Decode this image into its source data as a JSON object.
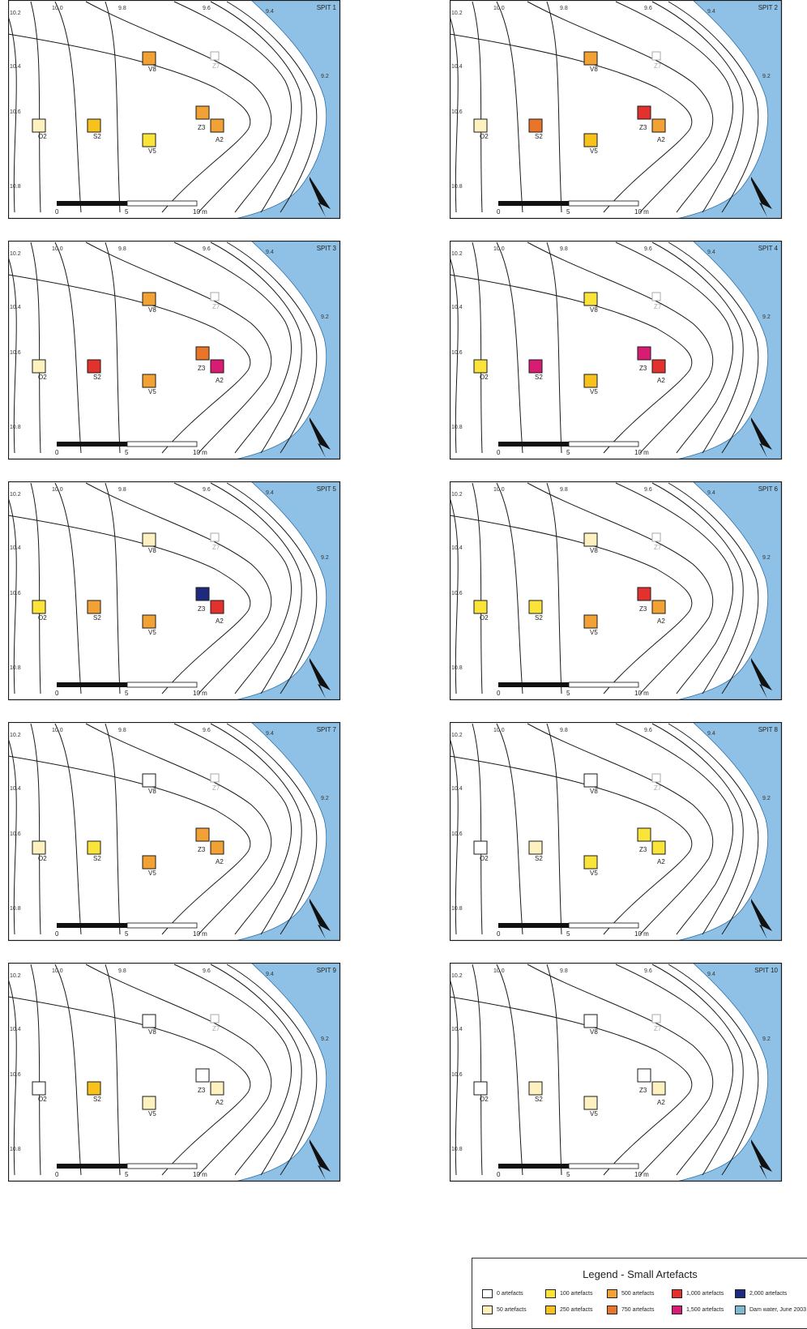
{
  "colors": {
    "0": "#ffffff",
    "50": "#fdf1c0",
    "100": "#fbe43a",
    "250": "#f7c21c",
    "500": "#f2a134",
    "750": "#e8752a",
    "1000": "#e3312e",
    "1500": "#d81c74",
    "2000": "#1d2a7e",
    "water": "#8fc1e6",
    "water_legend": "#7fb8cf"
  },
  "contour_labels": [
    "10.2",
    "10.0",
    "9.8",
    "9.6",
    "9.4",
    "10.4",
    "9.2",
    "10.6",
    "10.8"
  ],
  "scale_labels": [
    "0",
    "5",
    "10 m"
  ],
  "square_labels": [
    "V8",
    "Z7",
    "Z3",
    "A2",
    "O2",
    "S2",
    "V5"
  ],
  "north_arrow_icon": "north-arrow-icon",
  "spits": [
    {
      "title": "SPIT 1",
      "V8": 500,
      "Z3": 500,
      "A2": 500,
      "O2": 50,
      "S2": 250,
      "V5": 100
    },
    {
      "title": "SPIT 2",
      "V8": 500,
      "Z3": 1000,
      "A2": 500,
      "O2": 50,
      "S2": 750,
      "V5": 250
    },
    {
      "title": "SPIT 3",
      "V8": 500,
      "Z3": 750,
      "A2": 1500,
      "O2": 50,
      "S2": 1000,
      "V5": 500
    },
    {
      "title": "SPIT 4",
      "V8": 100,
      "Z3": 1500,
      "A2": 1000,
      "O2": 100,
      "S2": 1500,
      "V5": 250
    },
    {
      "title": "SPIT 5",
      "V8": 50,
      "Z3": 2000,
      "A2": 1000,
      "O2": 100,
      "S2": 500,
      "V5": 500
    },
    {
      "title": "SPIT 6",
      "V8": 50,
      "Z3": 1000,
      "A2": 500,
      "O2": 100,
      "S2": 100,
      "V5": 500
    },
    {
      "title": "SPIT 7",
      "V8": 0,
      "Z3": 500,
      "A2": 500,
      "O2": 50,
      "S2": 100,
      "V5": 500
    },
    {
      "title": "SPIT 8",
      "V8": 0,
      "Z3": 100,
      "A2": 100,
      "O2": 0,
      "S2": 50,
      "V5": 100
    },
    {
      "title": "SPIT 9",
      "V8": 0,
      "Z3": 0,
      "A2": 50,
      "O2": 0,
      "S2": 250,
      "V5": 50
    },
    {
      "title": "SPIT 10",
      "V8": 0,
      "Z3": 0,
      "A2": 50,
      "O2": 0,
      "S2": 50,
      "V5": 50
    }
  ],
  "legend": {
    "title": "Legend - Small Artefacts",
    "items": [
      {
        "key": "0",
        "label": "0 artefacts"
      },
      {
        "key": "100",
        "label": "100 artefacts"
      },
      {
        "key": "500",
        "label": "500 artefacts"
      },
      {
        "key": "1000",
        "label": "1,000 artefacts"
      },
      {
        "key": "2000",
        "label": "2,000 artefacts"
      },
      {
        "key": "50",
        "label": "50 artefacts"
      },
      {
        "key": "250",
        "label": "250 artefacts"
      },
      {
        "key": "750",
        "label": "750 artefacts"
      },
      {
        "key": "1500",
        "label": "1,500 artefacts"
      },
      {
        "key": "water_legend",
        "label": "Dam water, June 2003"
      }
    ]
  }
}
